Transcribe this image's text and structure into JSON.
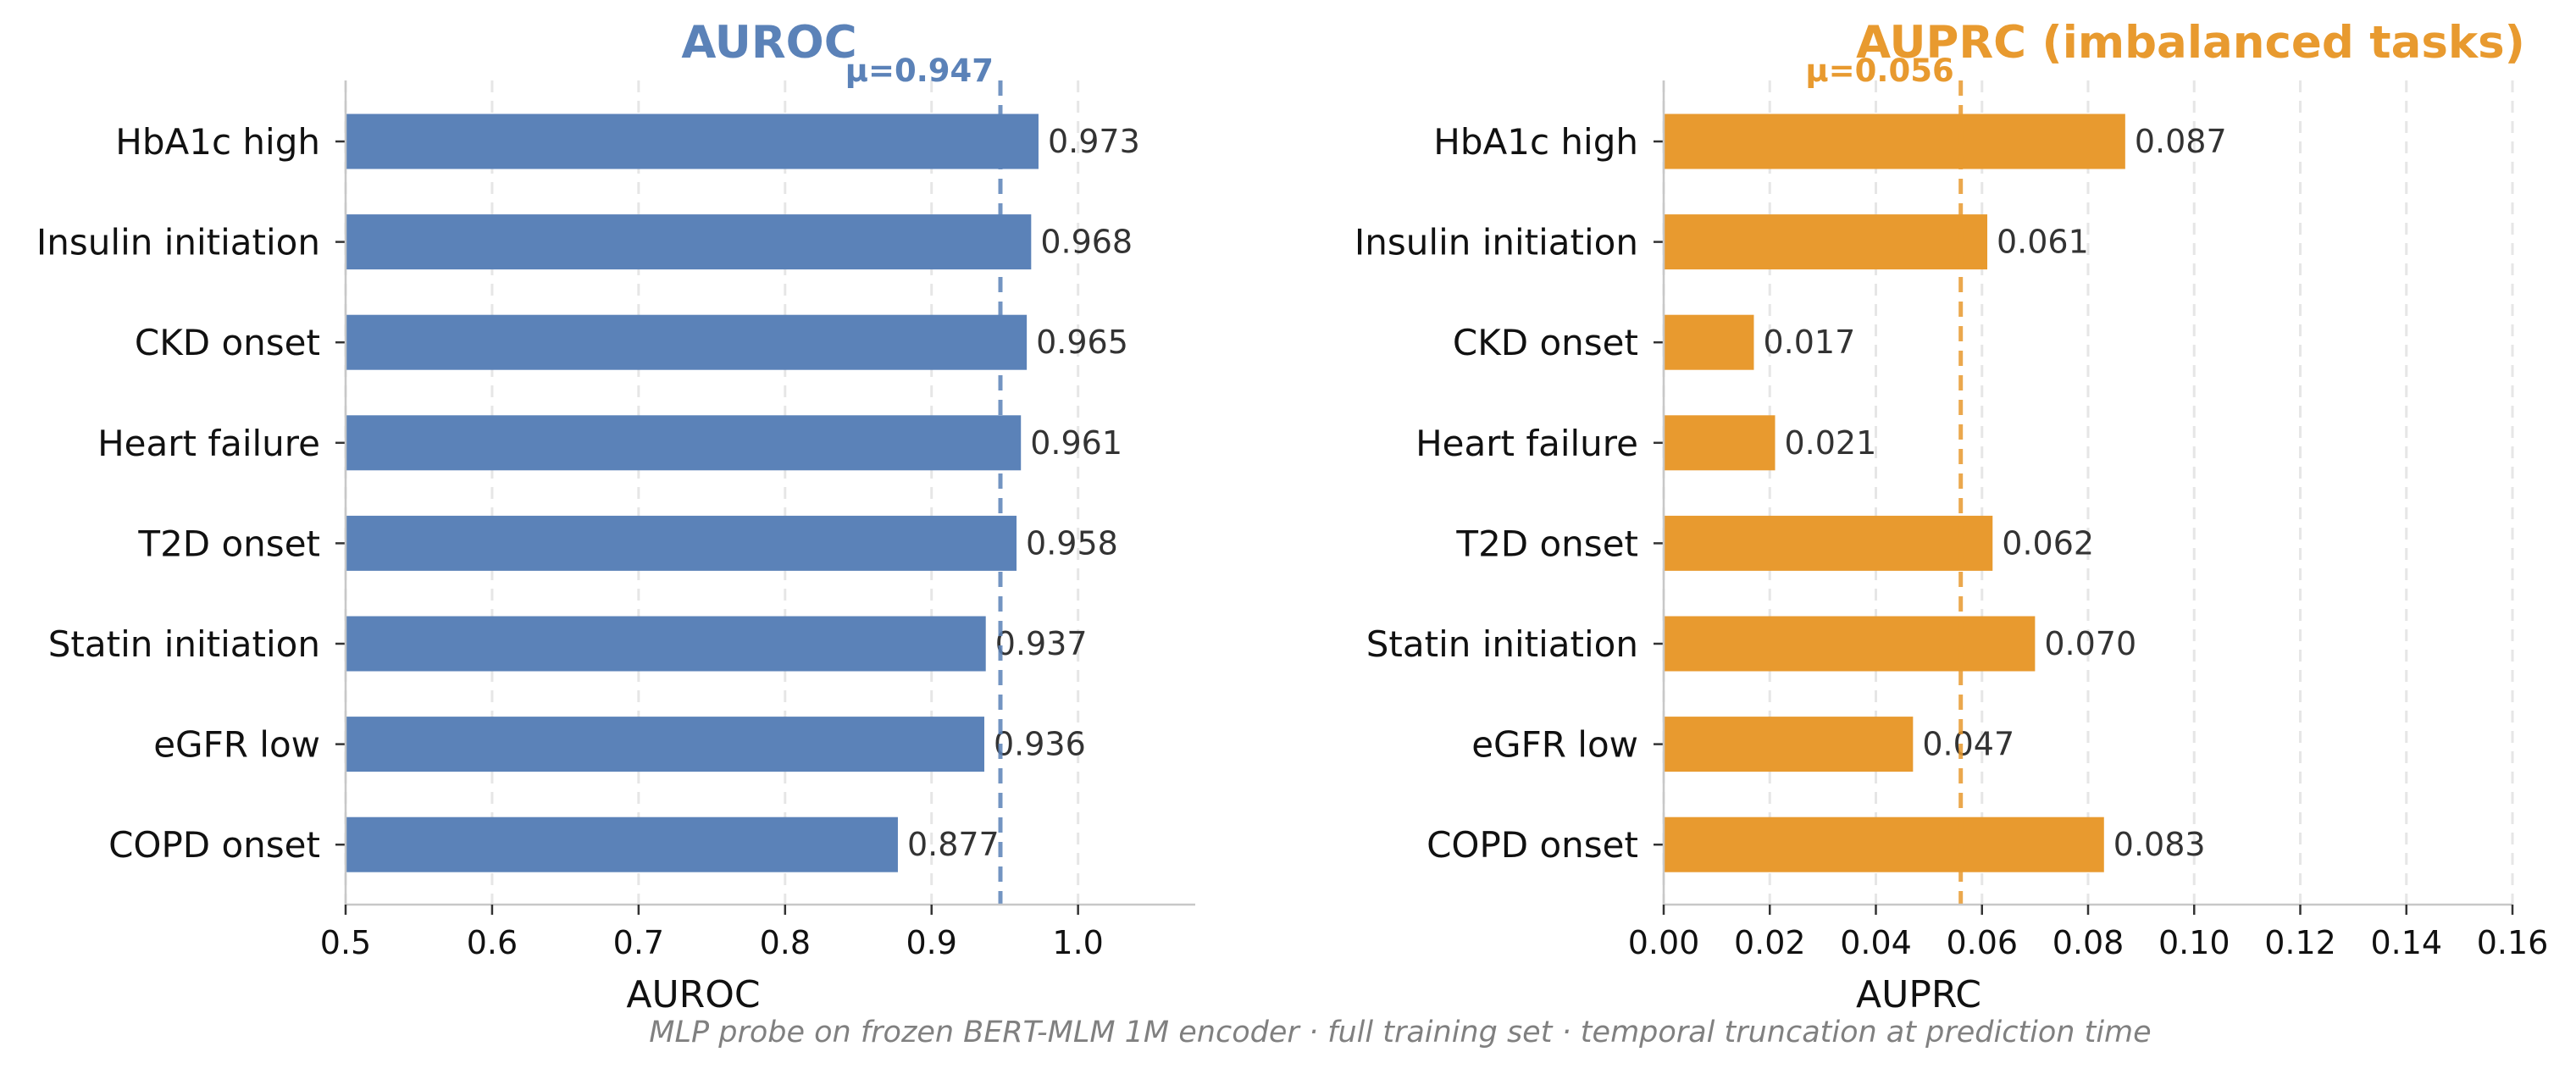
{
  "footer": "MLP probe on frozen BERT-MLM 1M encoder  ·  full training set  ·  temporal truncation at prediction time",
  "chart_data": [
    {
      "type": "bar",
      "orientation": "horizontal",
      "title": "AUROC",
      "xlabel": "AUROC",
      "ylabel": "",
      "color": "#5b82b8",
      "categories": [
        "HbA1c high",
        "Insulin initiation",
        "CKD onset",
        "Heart failure",
        "T2D onset",
        "Statin initiation",
        "eGFR low",
        "COPD onset"
      ],
      "values": [
        0.973,
        0.968,
        0.965,
        0.961,
        0.958,
        0.937,
        0.936,
        0.877
      ],
      "value_labels": [
        "0.973",
        "0.968",
        "0.965",
        "0.961",
        "0.958",
        "0.937",
        "0.936",
        "0.877"
      ],
      "xlim": [
        0.5,
        1.08
      ],
      "xticks": [
        0.5,
        0.6,
        0.7,
        0.8,
        0.9,
        1.0
      ],
      "xtick_labels": [
        "0.5",
        "0.6",
        "0.7",
        "0.8",
        "0.9",
        "1.0"
      ],
      "mean": 0.947,
      "mean_label": "μ=0.947",
      "grid": "vertical-dashed"
    },
    {
      "type": "bar",
      "orientation": "horizontal",
      "title": "AUPRC  (imbalanced tasks)",
      "xlabel": "AUPRC",
      "ylabel": "",
      "color": "#e89a2f",
      "categories": [
        "HbA1c high",
        "Insulin initiation",
        "CKD onset",
        "Heart failure",
        "T2D onset",
        "Statin initiation",
        "eGFR low",
        "COPD onset"
      ],
      "values": [
        0.087,
        0.061,
        0.017,
        0.021,
        0.062,
        0.07,
        0.047,
        0.083
      ],
      "value_labels": [
        "0.087",
        "0.061",
        "0.017",
        "0.021",
        "0.062",
        "0.070",
        "0.047",
        "0.083"
      ],
      "xlim": [
        0.0,
        0.16
      ],
      "xticks": [
        0.0,
        0.02,
        0.04,
        0.06,
        0.08,
        0.1,
        0.12,
        0.14,
        0.16
      ],
      "xtick_labels": [
        "0.00",
        "0.02",
        "0.04",
        "0.06",
        "0.08",
        "0.10",
        "0.12",
        "0.14",
        "0.16"
      ],
      "mean": 0.056,
      "mean_label": "μ=0.056",
      "grid": "vertical-dashed"
    }
  ]
}
